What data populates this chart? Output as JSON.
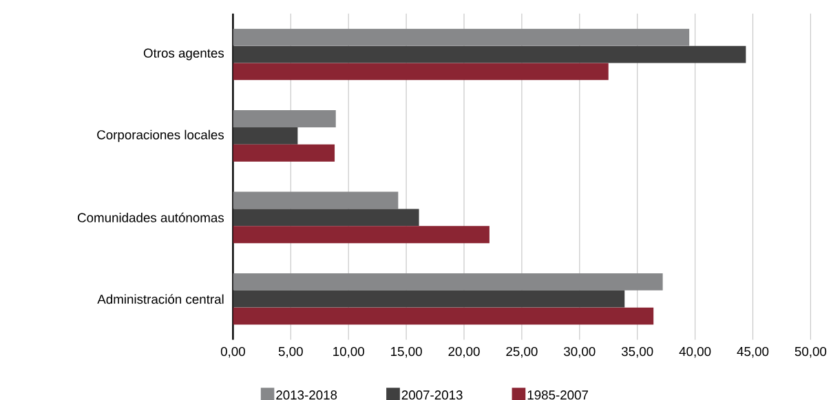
{
  "chart_data": {
    "type": "bar",
    "orientation": "horizontal",
    "categories": [
      "Otros agentes",
      "Corporaciones locales",
      "Comunidades autónomas",
      "Administración central"
    ],
    "series": [
      {
        "name": "2013-2018",
        "color": "#87888a",
        "values": [
          39.5,
          8.9,
          14.3,
          37.2
        ]
      },
      {
        "name": "2007-2013",
        "color": "#404040",
        "values": [
          44.4,
          5.6,
          16.1,
          33.9
        ]
      },
      {
        "name": "1985-2007",
        "color": "#8b2533",
        "values": [
          32.5,
          8.8,
          22.2,
          36.4
        ]
      }
    ],
    "xlim": [
      0,
      50
    ],
    "xticks": [
      {
        "value": 0,
        "label": "0,00"
      },
      {
        "value": 5,
        "label": "5,00"
      },
      {
        "value": 10,
        "label": "10,00"
      },
      {
        "value": 15,
        "label": "15,00"
      },
      {
        "value": 20,
        "label": "20,00"
      },
      {
        "value": 25,
        "label": "25,00"
      },
      {
        "value": 30,
        "label": "30,00"
      },
      {
        "value": 35,
        "label": "35,00"
      },
      {
        "value": 40,
        "label": "40,00"
      },
      {
        "value": 45,
        "label": "45,00"
      },
      {
        "value": 50,
        "label": "50,00"
      }
    ],
    "grid": "x",
    "legend": "bottom"
  }
}
